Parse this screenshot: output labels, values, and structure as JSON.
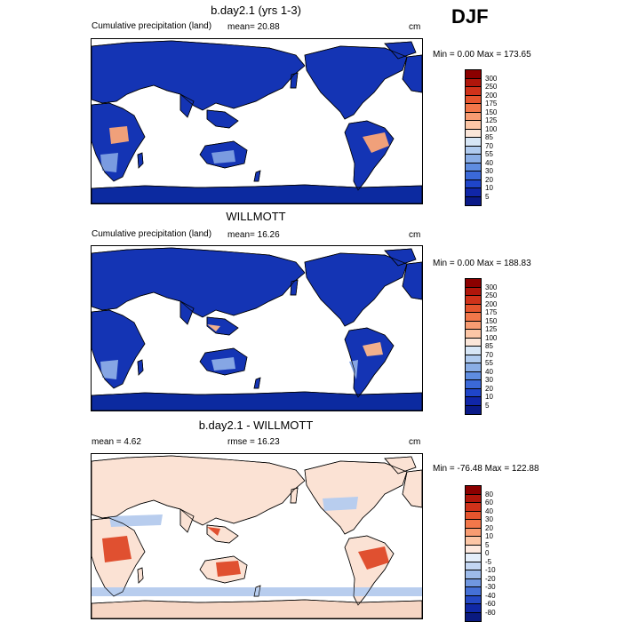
{
  "season": "DJF",
  "panels": [
    {
      "title": "b.day2.1 (yrs 1-3)",
      "left_label": "Cumulative precipitation (land)",
      "center_label": "mean=  20.88",
      "units": "cm",
      "minmax": "Min =    0.00 Max = 173.65",
      "colorbar": {
        "labels": [
          "300",
          "250",
          "200",
          "175",
          "150",
          "125",
          "100",
          "85",
          "70",
          "55",
          "40",
          "30",
          "20",
          "10",
          "5"
        ],
        "colors": [
          "#8b0000",
          "#b0160b",
          "#d0321a",
          "#e6552e",
          "#f2774a",
          "#f89c72",
          "#fcc6a6",
          "#fbe6d9",
          "#d7e6f6",
          "#b0cbef",
          "#8aaee6",
          "#5f8de0",
          "#3b69d8",
          "#1f45c9",
          "#1026a8",
          "#0a1a88"
        ]
      },
      "map_colors": {
        "ocean": "#ffffff",
        "land": "#1434b4",
        "dry": "#7a9be0",
        "wet": "#f0a07a",
        "ice": "#0c2aa0"
      }
    },
    {
      "title": "WILLMOTT",
      "left_label": "Cumulative precipitation (land)",
      "center_label": "mean=  16.26",
      "units": "cm",
      "minmax": "Min =    0.00 Max = 188.83",
      "colorbar": {
        "labels": [
          "300",
          "250",
          "200",
          "175",
          "150",
          "125",
          "100",
          "85",
          "70",
          "55",
          "40",
          "30",
          "20",
          "10",
          "5"
        ],
        "colors": [
          "#8b0000",
          "#b0160b",
          "#d0321a",
          "#e6552e",
          "#f2774a",
          "#f89c72",
          "#fcc6a6",
          "#fbe6d9",
          "#d7e6f6",
          "#b0cbef",
          "#8aaee6",
          "#5f8de0",
          "#3b69d8",
          "#1f45c9",
          "#1026a8",
          "#0a1a88"
        ]
      },
      "map_colors": {
        "ocean": "#ffffff",
        "land": "#1434b4",
        "dry": "#86a6e4",
        "wet": "#f2b08c",
        "ice": "#0c2aa0"
      }
    },
    {
      "title": "b.day2.1 - WILLMOTT",
      "left_label": "mean =   4.62",
      "center_label": "rmse =  16.23",
      "units": "cm",
      "minmax": "Min = -76.48 Max = 122.88",
      "colorbar": {
        "labels": [
          "80",
          "60",
          "40",
          "30",
          "20",
          "10",
          "5",
          "0",
          "-5",
          "-10",
          "-20",
          "-30",
          "-40",
          "-60",
          "-80"
        ],
        "colors": [
          "#8b0000",
          "#b0160b",
          "#d0321a",
          "#e6552e",
          "#f2774a",
          "#f89c72",
          "#fcc6a6",
          "#fde9df",
          "#e4eefa",
          "#c3d6f2",
          "#9dbbea",
          "#7097e0",
          "#4570d6",
          "#2448c4",
          "#1028a6",
          "#0a1a80"
        ]
      },
      "map_colors": {
        "ocean": "#ffffff",
        "land": "#fbe2d4",
        "dry": "#b8cdee",
        "wet": "#e05030",
        "ice": "#f6d6c4"
      }
    }
  ]
}
